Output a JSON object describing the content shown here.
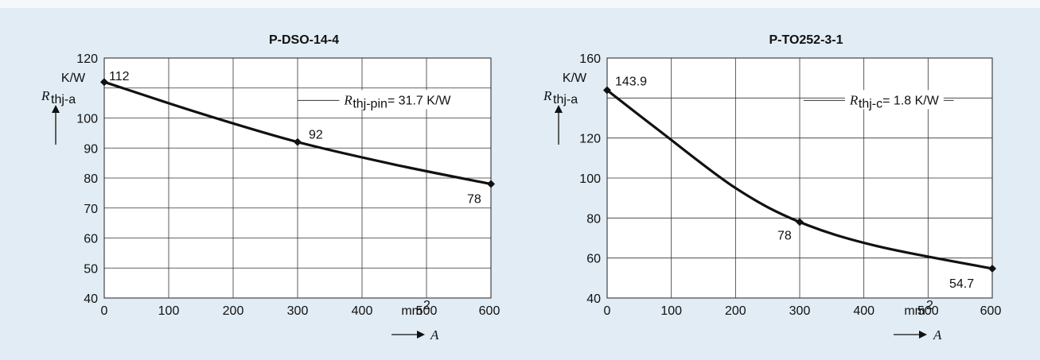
{
  "chart_data": [
    {
      "type": "line",
      "title": "P-DSO-14-4",
      "x": [
        0,
        300,
        600
      ],
      "y": [
        112,
        92,
        78
      ],
      "point_labels": [
        "112",
        "92",
        "78"
      ],
      "xlim": [
        0,
        600
      ],
      "ylim": [
        40,
        120
      ],
      "x_ticks": [
        "0",
        "100",
        "200",
        "300",
        "400",
        "500",
        "600"
      ],
      "y_ticks": [
        "40",
        "50",
        "60",
        "70",
        "80",
        "90",
        "100",
        "120"
      ],
      "x_unit": "mm",
      "x_unit_sup": "2",
      "y_unit": "K/W",
      "ylabel_main": "R",
      "ylabel_sub": "thj-a",
      "xlabel": "A",
      "annotation_main": "R",
      "annotation_sub": "thj-pin",
      "annotation_rest": " = 31.7 K/W",
      "grid": true
    },
    {
      "type": "line",
      "title": "P-TO252-3-1",
      "x": [
        0,
        300,
        600
      ],
      "y": [
        143.9,
        78,
        54.7
      ],
      "point_labels": [
        "143.9",
        "78",
        "54.7"
      ],
      "xlim": [
        0,
        600
      ],
      "ylim": [
        40,
        160
      ],
      "x_ticks": [
        "0",
        "100",
        "200",
        "300",
        "400",
        "500",
        "600"
      ],
      "y_ticks": [
        "40",
        "60",
        "80",
        "100",
        "120",
        "160"
      ],
      "x_unit": "mm",
      "x_unit_sup": "2",
      "y_unit": "K/W",
      "ylabel_main": "R",
      "ylabel_sub": "thj-a",
      "xlabel": "A",
      "annotation_main": "R",
      "annotation_sub": "thj-c",
      "annotation_rest": " = 1.8 K/W",
      "grid": true
    }
  ],
  "colors": {
    "background": "#e1ecf4",
    "plot": "#ffffff",
    "curve": "#111111"
  }
}
